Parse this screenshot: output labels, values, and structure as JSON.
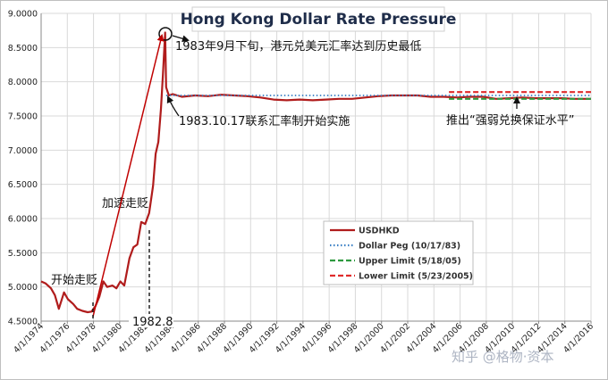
{
  "chart_data": {
    "type": "line",
    "title": "Hong Kong Dollar Rate Pressure",
    "ylim": [
      4.5,
      9.0
    ],
    "yticks": [
      "4.5000",
      "5.0000",
      "5.5000",
      "6.0000",
      "6.5000",
      "7.0000",
      "7.5000",
      "8.0000",
      "8.5000",
      "9.0000"
    ],
    "yticks_val": [
      4.5,
      5.0,
      5.5,
      6.0,
      6.5,
      7.0,
      7.5,
      8.0,
      8.5,
      9.0
    ],
    "xlim": [
      1974.25,
      2016.25
    ],
    "xticks": [
      "4/1/1974",
      "4/1/1976",
      "4/1/1978",
      "4/1/1980",
      "4/1/1982",
      "4/1/1984",
      "4/1/1986",
      "4/1/1988",
      "4/1/1990",
      "4/1/1992",
      "4/1/1994",
      "4/1/1996",
      "4/1/1998",
      "4/1/2000",
      "4/1/2002",
      "4/1/2004",
      "4/1/2006",
      "4/1/2008",
      "4/1/2010",
      "4/1/2012",
      "4/1/2014",
      "4/1/2016"
    ],
    "xticks_val": [
      1974.25,
      1976.25,
      1978.25,
      1980.25,
      1982.25,
      1984.25,
      1986.25,
      1988.25,
      1990.25,
      1992.25,
      1994.25,
      1996.25,
      1998.25,
      2000.25,
      2002.25,
      2004.25,
      2006.25,
      2008.25,
      2010.25,
      2012.25,
      2014.25,
      2016.25
    ],
    "grid": true,
    "legend_position": "bottom-right",
    "series": [
      {
        "name": "USDHKD",
        "color": "#b01c1c",
        "style": "solid",
        "x": [
          1974.25,
          1974.6,
          1975.0,
          1975.3,
          1975.6,
          1976.0,
          1976.3,
          1976.7,
          1977.0,
          1977.4,
          1977.8,
          1978.1,
          1978.4,
          1978.7,
          1979.0,
          1979.3,
          1979.7,
          1980.0,
          1980.3,
          1980.6,
          1981.0,
          1981.3,
          1981.6,
          1981.9,
          1982.2,
          1982.5,
          1982.8,
          1983.0,
          1983.2,
          1983.4,
          1983.55,
          1983.72,
          1983.8,
          1984.0,
          1984.3,
          1985.0,
          1986.0,
          1987.0,
          1988.0,
          1989.0,
          1990.0,
          1991.0,
          1992.0,
          1993.0,
          1994.0,
          1995.0,
          1996.0,
          1997.0,
          1998.0,
          1999.0,
          2000.0,
          2001.0,
          2002.0,
          2003.0,
          2004.0,
          2005.0,
          2006.0,
          2007.0,
          2008.0,
          2009.0,
          2010.0,
          2011.0,
          2012.0,
          2013.0,
          2014.0,
          2015.0,
          2016.25
        ],
        "values": [
          5.08,
          5.05,
          4.98,
          4.88,
          4.68,
          4.92,
          4.82,
          4.75,
          4.68,
          4.65,
          4.63,
          4.64,
          4.72,
          4.86,
          5.08,
          5.0,
          5.02,
          4.98,
          5.08,
          5.02,
          5.42,
          5.58,
          5.62,
          5.95,
          5.92,
          6.08,
          6.48,
          6.95,
          7.12,
          7.6,
          8.1,
          8.72,
          7.92,
          7.8,
          7.82,
          7.78,
          7.8,
          7.79,
          7.81,
          7.8,
          7.79,
          7.77,
          7.74,
          7.73,
          7.74,
          7.73,
          7.74,
          7.75,
          7.75,
          7.77,
          7.79,
          7.8,
          7.8,
          7.8,
          7.78,
          7.78,
          7.77,
          7.78,
          7.78,
          7.75,
          7.76,
          7.77,
          7.76,
          7.76,
          7.76,
          7.75,
          7.75
        ]
      },
      {
        "name": "Dollar Peg (10/17/83)",
        "color": "#3a7fc4",
        "style": "dotted",
        "x": [
          1983.8,
          2016.25
        ],
        "values": [
          7.8,
          7.8
        ]
      },
      {
        "name": "Upper Limit (5/18/05)",
        "color": "#2e9a3f",
        "style": "dashed",
        "x": [
          2005.4,
          2016.25
        ],
        "values": [
          7.75,
          7.75
        ]
      },
      {
        "name": "Lower Limit (5/23/2005)",
        "color": "#e02b2b",
        "style": "dashed",
        "x": [
          2005.4,
          2016.25
        ],
        "values": [
          7.85,
          7.85
        ]
      }
    ],
    "annotations": {
      "peak": "1983年9月下旬，港元兑美元汇率达到历史最低",
      "peg": "1983.10.17联系汇率制开始实施",
      "limits": "推出“强弱兑换保证水平”",
      "accel": "加速走贬",
      "start": "开始走贬",
      "date": "1982.8"
    }
  },
  "watermark": "知乎 @格物·资本"
}
